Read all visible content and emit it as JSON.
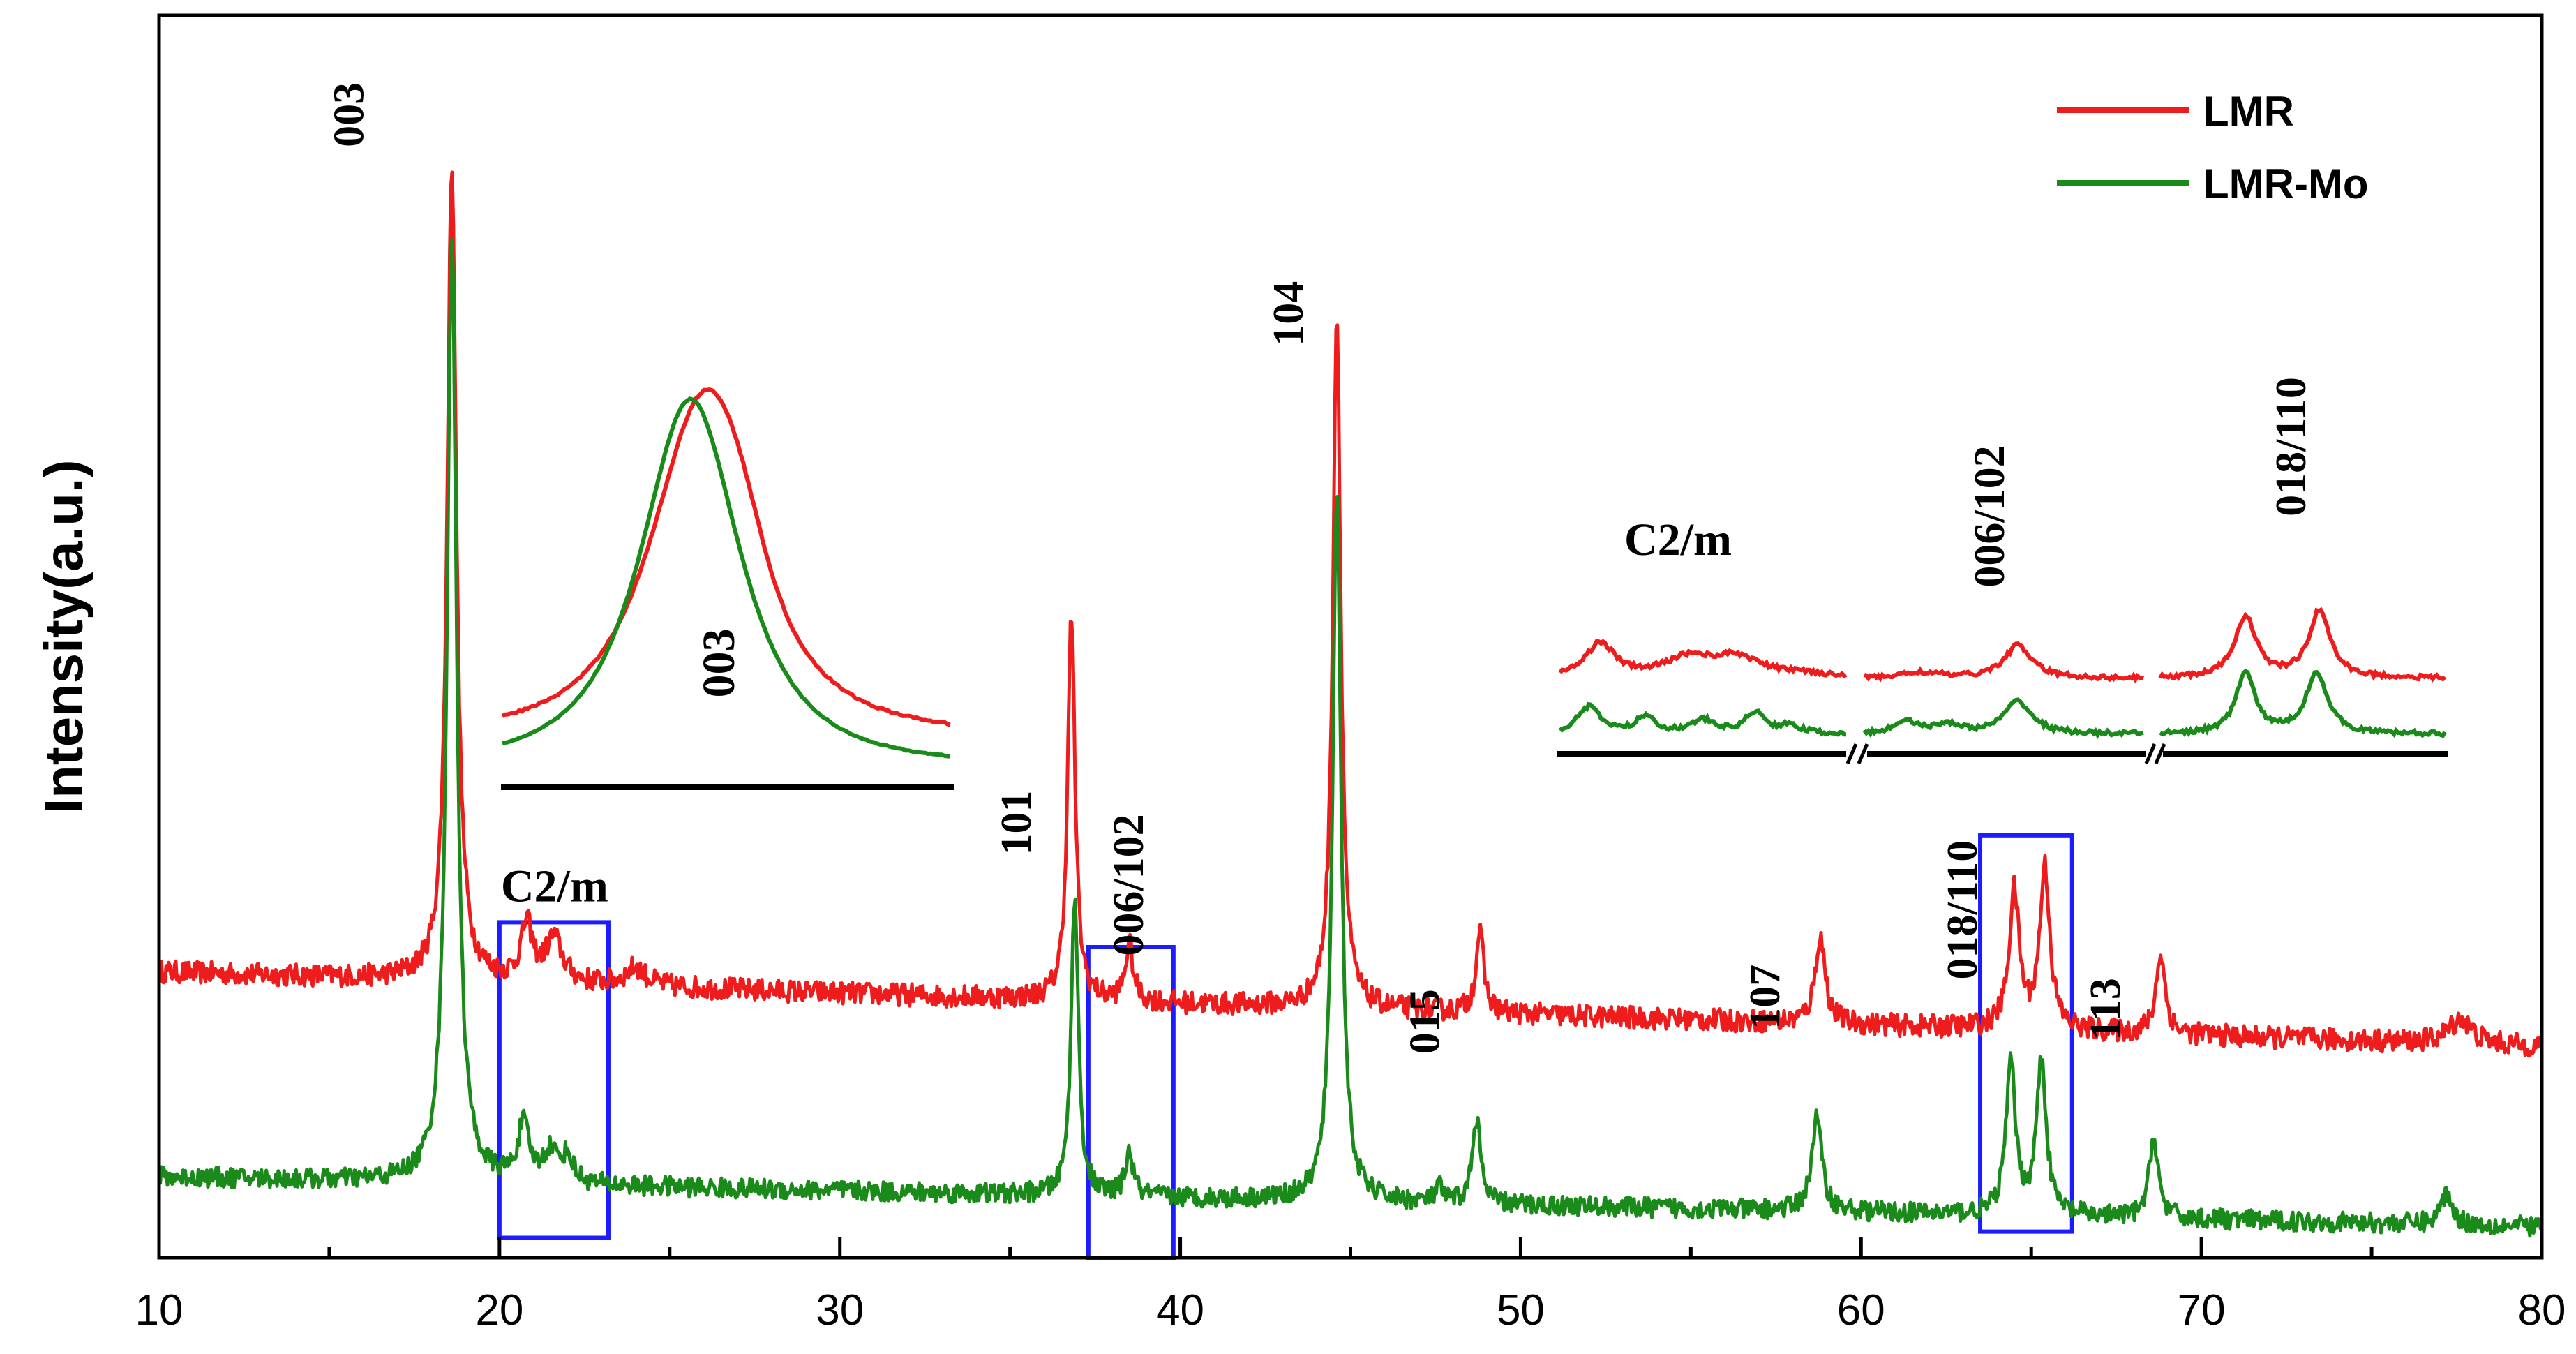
{
  "chart_data": {
    "type": "line",
    "title": "",
    "xlabel": "",
    "ylabel": "Intensity(a.u.)",
    "xlim": [
      10,
      80
    ],
    "ylim": [
      0,
      100
    ],
    "xticks": [
      "10",
      "20",
      "30",
      "40",
      "50",
      "60",
      "70",
      "80"
    ],
    "grid": false,
    "legend": {
      "position": "top-right",
      "entries": [
        {
          "name": "LMR",
          "color": "#ee1c1c"
        },
        {
          "name": "LMR-Mo",
          "color": "#1a8a1a"
        }
      ]
    },
    "series": [
      {
        "name": "LMR",
        "color": "#ee1c1c",
        "baseline_start": 23,
        "baseline_end": 17,
        "noise": 0.9,
        "peaks": [
          {
            "x": 18.6,
            "height": 66,
            "width": 0.16
          },
          {
            "x": 20.8,
            "height": 4.5,
            "width": 0.2
          },
          {
            "x": 21.6,
            "height": 3.5,
            "width": 0.3
          },
          {
            "x": 24.0,
            "height": 1.5,
            "width": 0.35
          },
          {
            "x": 36.8,
            "height": 31,
            "width": 0.13
          },
          {
            "x": 38.5,
            "height": 4.5,
            "width": 0.14
          },
          {
            "x": 44.6,
            "height": 56,
            "width": 0.14
          },
          {
            "x": 48.8,
            "height": 6.5,
            "width": 0.14
          },
          {
            "x": 58.8,
            "height": 7,
            "width": 0.18
          },
          {
            "x": 64.5,
            "height": 11,
            "width": 0.18
          },
          {
            "x": 65.4,
            "height": 13,
            "width": 0.18
          },
          {
            "x": 68.8,
            "height": 6.5,
            "width": 0.16
          },
          {
            "x": 77.6,
            "height": 2,
            "width": 0.4
          }
        ]
      },
      {
        "name": "LMR-Mo",
        "color": "#1a8a1a",
        "baseline_start": 6.5,
        "baseline_end": 2.5,
        "noise": 0.8,
        "peaks": [
          {
            "x": 18.6,
            "height": 76,
            "width": 0.17
          },
          {
            "x": 20.7,
            "height": 4.5,
            "width": 0.2
          },
          {
            "x": 21.5,
            "height": 2.5,
            "width": 0.25
          },
          {
            "x": 22.0,
            "height": 2,
            "width": 0.2
          },
          {
            "x": 36.9,
            "height": 24,
            "width": 0.13
          },
          {
            "x": 38.5,
            "height": 3.5,
            "width": 0.14
          },
          {
            "x": 44.6,
            "height": 57,
            "width": 0.15
          },
          {
            "x": 47.6,
            "height": 1.2,
            "width": 0.12
          },
          {
            "x": 48.7,
            "height": 7,
            "width": 0.14
          },
          {
            "x": 58.7,
            "height": 7.5,
            "width": 0.18
          },
          {
            "x": 64.4,
            "height": 12,
            "width": 0.17
          },
          {
            "x": 65.3,
            "height": 12.5,
            "width": 0.17
          },
          {
            "x": 68.6,
            "height": 6.5,
            "width": 0.16
          },
          {
            "x": 77.2,
            "height": 2.5,
            "width": 0.2
          }
        ]
      }
    ],
    "peak_labels": [
      {
        "text": "003",
        "x": 16.0,
        "y": 92
      },
      {
        "text": "101",
        "x": 35.6,
        "y": 35
      },
      {
        "text": "006/102",
        "x": 38.9,
        "y": 30
      },
      {
        "text": "104",
        "x": 43.6,
        "y": 76
      },
      {
        "text": "015",
        "x": 47.6,
        "y": 19
      },
      {
        "text": "107",
        "x": 57.6,
        "y": 21
      },
      {
        "text": "018/110",
        "x": 63.4,
        "y": 28
      },
      {
        "text": "113",
        "x": 67.6,
        "y": 20
      }
    ],
    "region_boxes": [
      {
        "label": "C2/m",
        "x0": 20.0,
        "x1": 23.2,
        "y0": 1.6,
        "y1": 27
      },
      {
        "label": "",
        "x0": 37.3,
        "x1": 39.8,
        "y0": 0,
        "y1": 25
      },
      {
        "label": "",
        "x0": 63.5,
        "x1": 66.2,
        "y0": 2.1,
        "y1": 34
      }
    ],
    "insets": [
      {
        "name": "003 peak magnified",
        "label": "003"
      },
      {
        "name": "weak reflections magnified",
        "labels": [
          "C2/m",
          "006/102",
          "018/110"
        ]
      }
    ]
  }
}
